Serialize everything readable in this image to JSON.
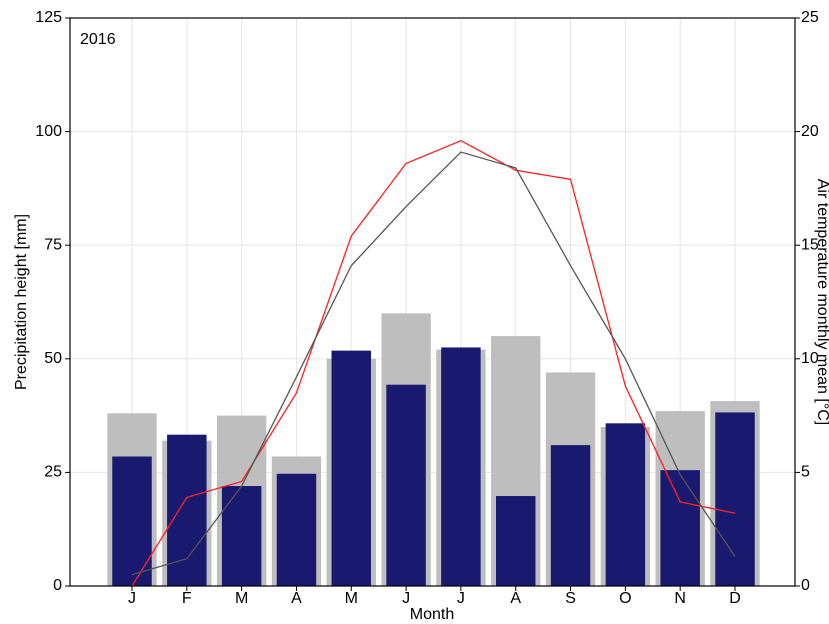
{
  "chart_data": {
    "type": "bar_line",
    "annotation": "2016",
    "x_label": "Month",
    "y_label": "Precipitation height [mm]",
    "y2_label": "Air temperature monthly mean [°C]",
    "categories": [
      "J",
      "F",
      "M",
      "A",
      "M",
      "J",
      "J",
      "A",
      "S",
      "O",
      "N",
      "D"
    ],
    "ylim": [
      0,
      125
    ],
    "yticks": [
      0,
      25,
      50,
      75,
      100,
      125
    ],
    "y2lim": [
      0,
      25
    ],
    "y2ticks": [
      0,
      5,
      10,
      15,
      20,
      25
    ],
    "grid": true,
    "series": [
      {
        "kind": "bar",
        "color": "#bebebe",
        "width": 0.9,
        "values": [
          38,
          32,
          37.5,
          28.5,
          50,
          60,
          52,
          55,
          47,
          35,
          38.5,
          40.7
        ]
      },
      {
        "kind": "bar",
        "color": "#191970",
        "width": 0.72,
        "values": [
          28.5,
          33.3,
          22,
          24.7,
          51.8,
          44.3,
          52.5,
          19.8,
          31,
          35.8,
          25.5,
          38.2
        ]
      },
      {
        "kind": "line",
        "axis": "y2",
        "color": "#ff2020",
        "values": [
          0,
          3.9,
          4.6,
          8.5,
          15.4,
          18.6,
          19.6,
          18.3,
          17.9,
          8.8,
          3.7,
          3.2
        ]
      },
      {
        "kind": "line",
        "axis": "y2",
        "color": "#555555",
        "values": [
          0.5,
          1.2,
          4.4,
          9.2,
          14.1,
          16.7,
          19.1,
          18.4,
          14.1,
          10.0,
          4.9,
          1.3
        ]
      }
    ]
  }
}
